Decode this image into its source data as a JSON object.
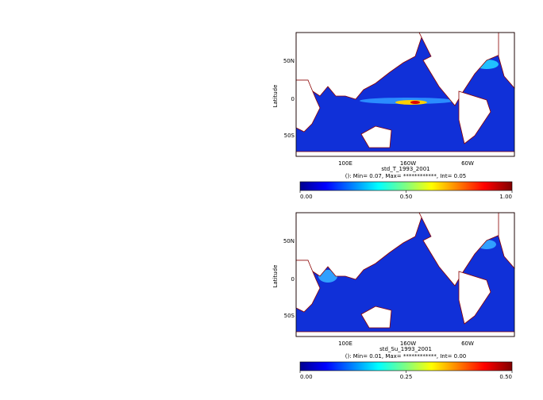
{
  "panels": [
    {
      "title": "std_T_1993_2001",
      "stats": "(): Min= 0.07, Max= ************, Int= 0.05",
      "ylabel": "Latitude",
      "lat_ticks": [
        "50N",
        "0",
        "50S"
      ],
      "lon_ticks": [
        "100E",
        "160W",
        "60W"
      ],
      "colorbar": {
        "range": [
          0,
          1
        ],
        "ticks": [
          {
            "value": 0,
            "label": "0.00"
          },
          {
            "value": 0.5,
            "label": "0.50"
          },
          {
            "value": 1,
            "label": "1.00"
          }
        ]
      }
    },
    {
      "title": "std_Su_1993_2001",
      "stats": "(): Min= 0.01, Max= ************, Int= 0.00",
      "ylabel": "Latitude",
      "lat_ticks": [
        "50N",
        "0",
        "50S"
      ],
      "lon_ticks": [
        "100E",
        "160W",
        "60W"
      ],
      "colorbar": {
        "range": [
          0,
          0.5
        ],
        "ticks": [
          {
            "value": 0,
            "label": "0.00"
          },
          {
            "value": 0.25,
            "label": "0.25"
          },
          {
            "value": 0.5,
            "label": "0.50"
          }
        ]
      }
    }
  ]
}
